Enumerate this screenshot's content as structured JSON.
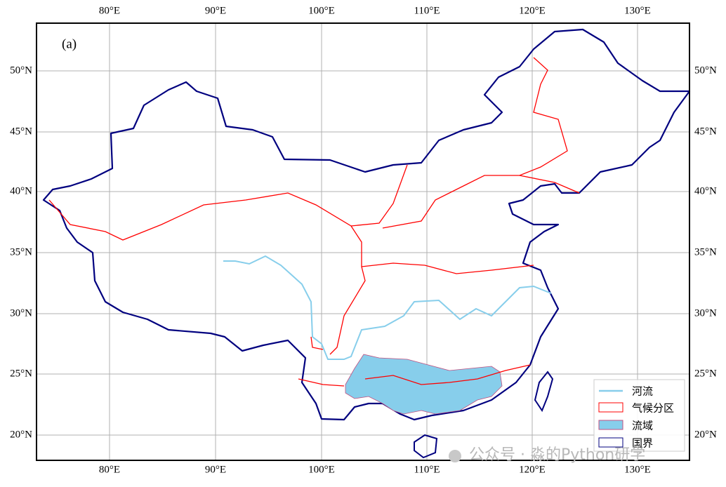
{
  "panel_label": "(a)",
  "x_ticks": [
    "80°E",
    "90°E",
    "100°E",
    "110°E",
    "120°E",
    "130°E"
  ],
  "y_ticks": [
    "50°N",
    "45°N",
    "40°N",
    "35°N",
    "30°N",
    "25°N",
    "20°N"
  ],
  "legend": [
    {
      "label": "河流"
    },
    {
      "label": "气候分区"
    },
    {
      "label": "流域"
    },
    {
      "label": "国界"
    }
  ],
  "watermark": "公众号 · 淼的Python研学"
}
